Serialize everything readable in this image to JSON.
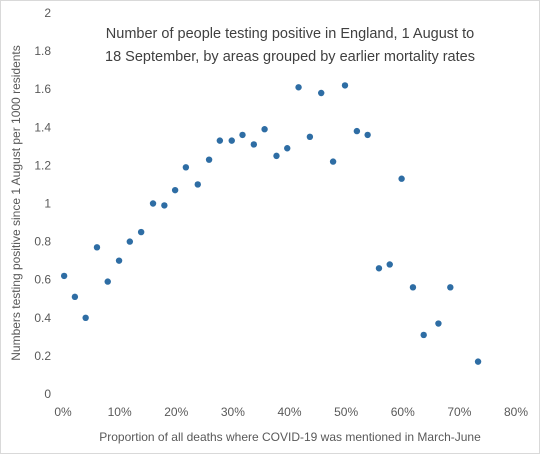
{
  "chart_data": {
    "type": "scatter",
    "title_lines": [
      "Number of people testing positive in England, 1 August to",
      "18 September, by areas grouped by earlier mortality rates"
    ],
    "xlabel": "Proportion of all deaths where COVID-19 was mentioned in March-June",
    "ylabel": "Numbers testing positive since 1 August per 1000 residents",
    "xlim": [
      0,
      80
    ],
    "ylim": [
      0,
      2
    ],
    "x_ticks": [
      "0%",
      "10%",
      "20%",
      "30%",
      "40%",
      "50%",
      "60%",
      "70%",
      "80%"
    ],
    "y_ticks": [
      "0",
      "0.2",
      "0.4",
      "0.6",
      "0.8",
      "1",
      "1.2",
      "1.4",
      "1.6",
      "1.8",
      "2"
    ],
    "grid": false,
    "legend": "none",
    "marker_color": "#2e6da4",
    "points": [
      {
        "x": 0.2,
        "y": 0.62
      },
      {
        "x": 2.1,
        "y": 0.51
      },
      {
        "x": 4.0,
        "y": 0.4
      },
      {
        "x": 6.0,
        "y": 0.77
      },
      {
        "x": 7.9,
        "y": 0.59
      },
      {
        "x": 9.9,
        "y": 0.7
      },
      {
        "x": 11.8,
        "y": 0.8
      },
      {
        "x": 13.8,
        "y": 0.85
      },
      {
        "x": 15.9,
        "y": 1.0
      },
      {
        "x": 17.9,
        "y": 0.99
      },
      {
        "x": 19.8,
        "y": 1.07
      },
      {
        "x": 21.7,
        "y": 1.19
      },
      {
        "x": 23.8,
        "y": 1.1
      },
      {
        "x": 25.8,
        "y": 1.23
      },
      {
        "x": 27.7,
        "y": 1.33
      },
      {
        "x": 29.8,
        "y": 1.33
      },
      {
        "x": 31.7,
        "y": 1.36
      },
      {
        "x": 33.7,
        "y": 1.31
      },
      {
        "x": 35.6,
        "y": 1.39
      },
      {
        "x": 37.7,
        "y": 1.25
      },
      {
        "x": 39.6,
        "y": 1.29
      },
      {
        "x": 41.6,
        "y": 1.61
      },
      {
        "x": 43.6,
        "y": 1.35
      },
      {
        "x": 45.6,
        "y": 1.58
      },
      {
        "x": 47.7,
        "y": 1.22
      },
      {
        "x": 49.8,
        "y": 1.62
      },
      {
        "x": 51.9,
        "y": 1.38
      },
      {
        "x": 53.8,
        "y": 1.36
      },
      {
        "x": 55.8,
        "y": 0.66
      },
      {
        "x": 57.7,
        "y": 0.68
      },
      {
        "x": 59.8,
        "y": 1.13
      },
      {
        "x": 61.8,
        "y": 0.56
      },
      {
        "x": 63.7,
        "y": 0.31
      },
      {
        "x": 66.3,
        "y": 0.37
      },
      {
        "x": 68.4,
        "y": 0.56
      },
      {
        "x": 73.3,
        "y": 0.17
      }
    ]
  }
}
